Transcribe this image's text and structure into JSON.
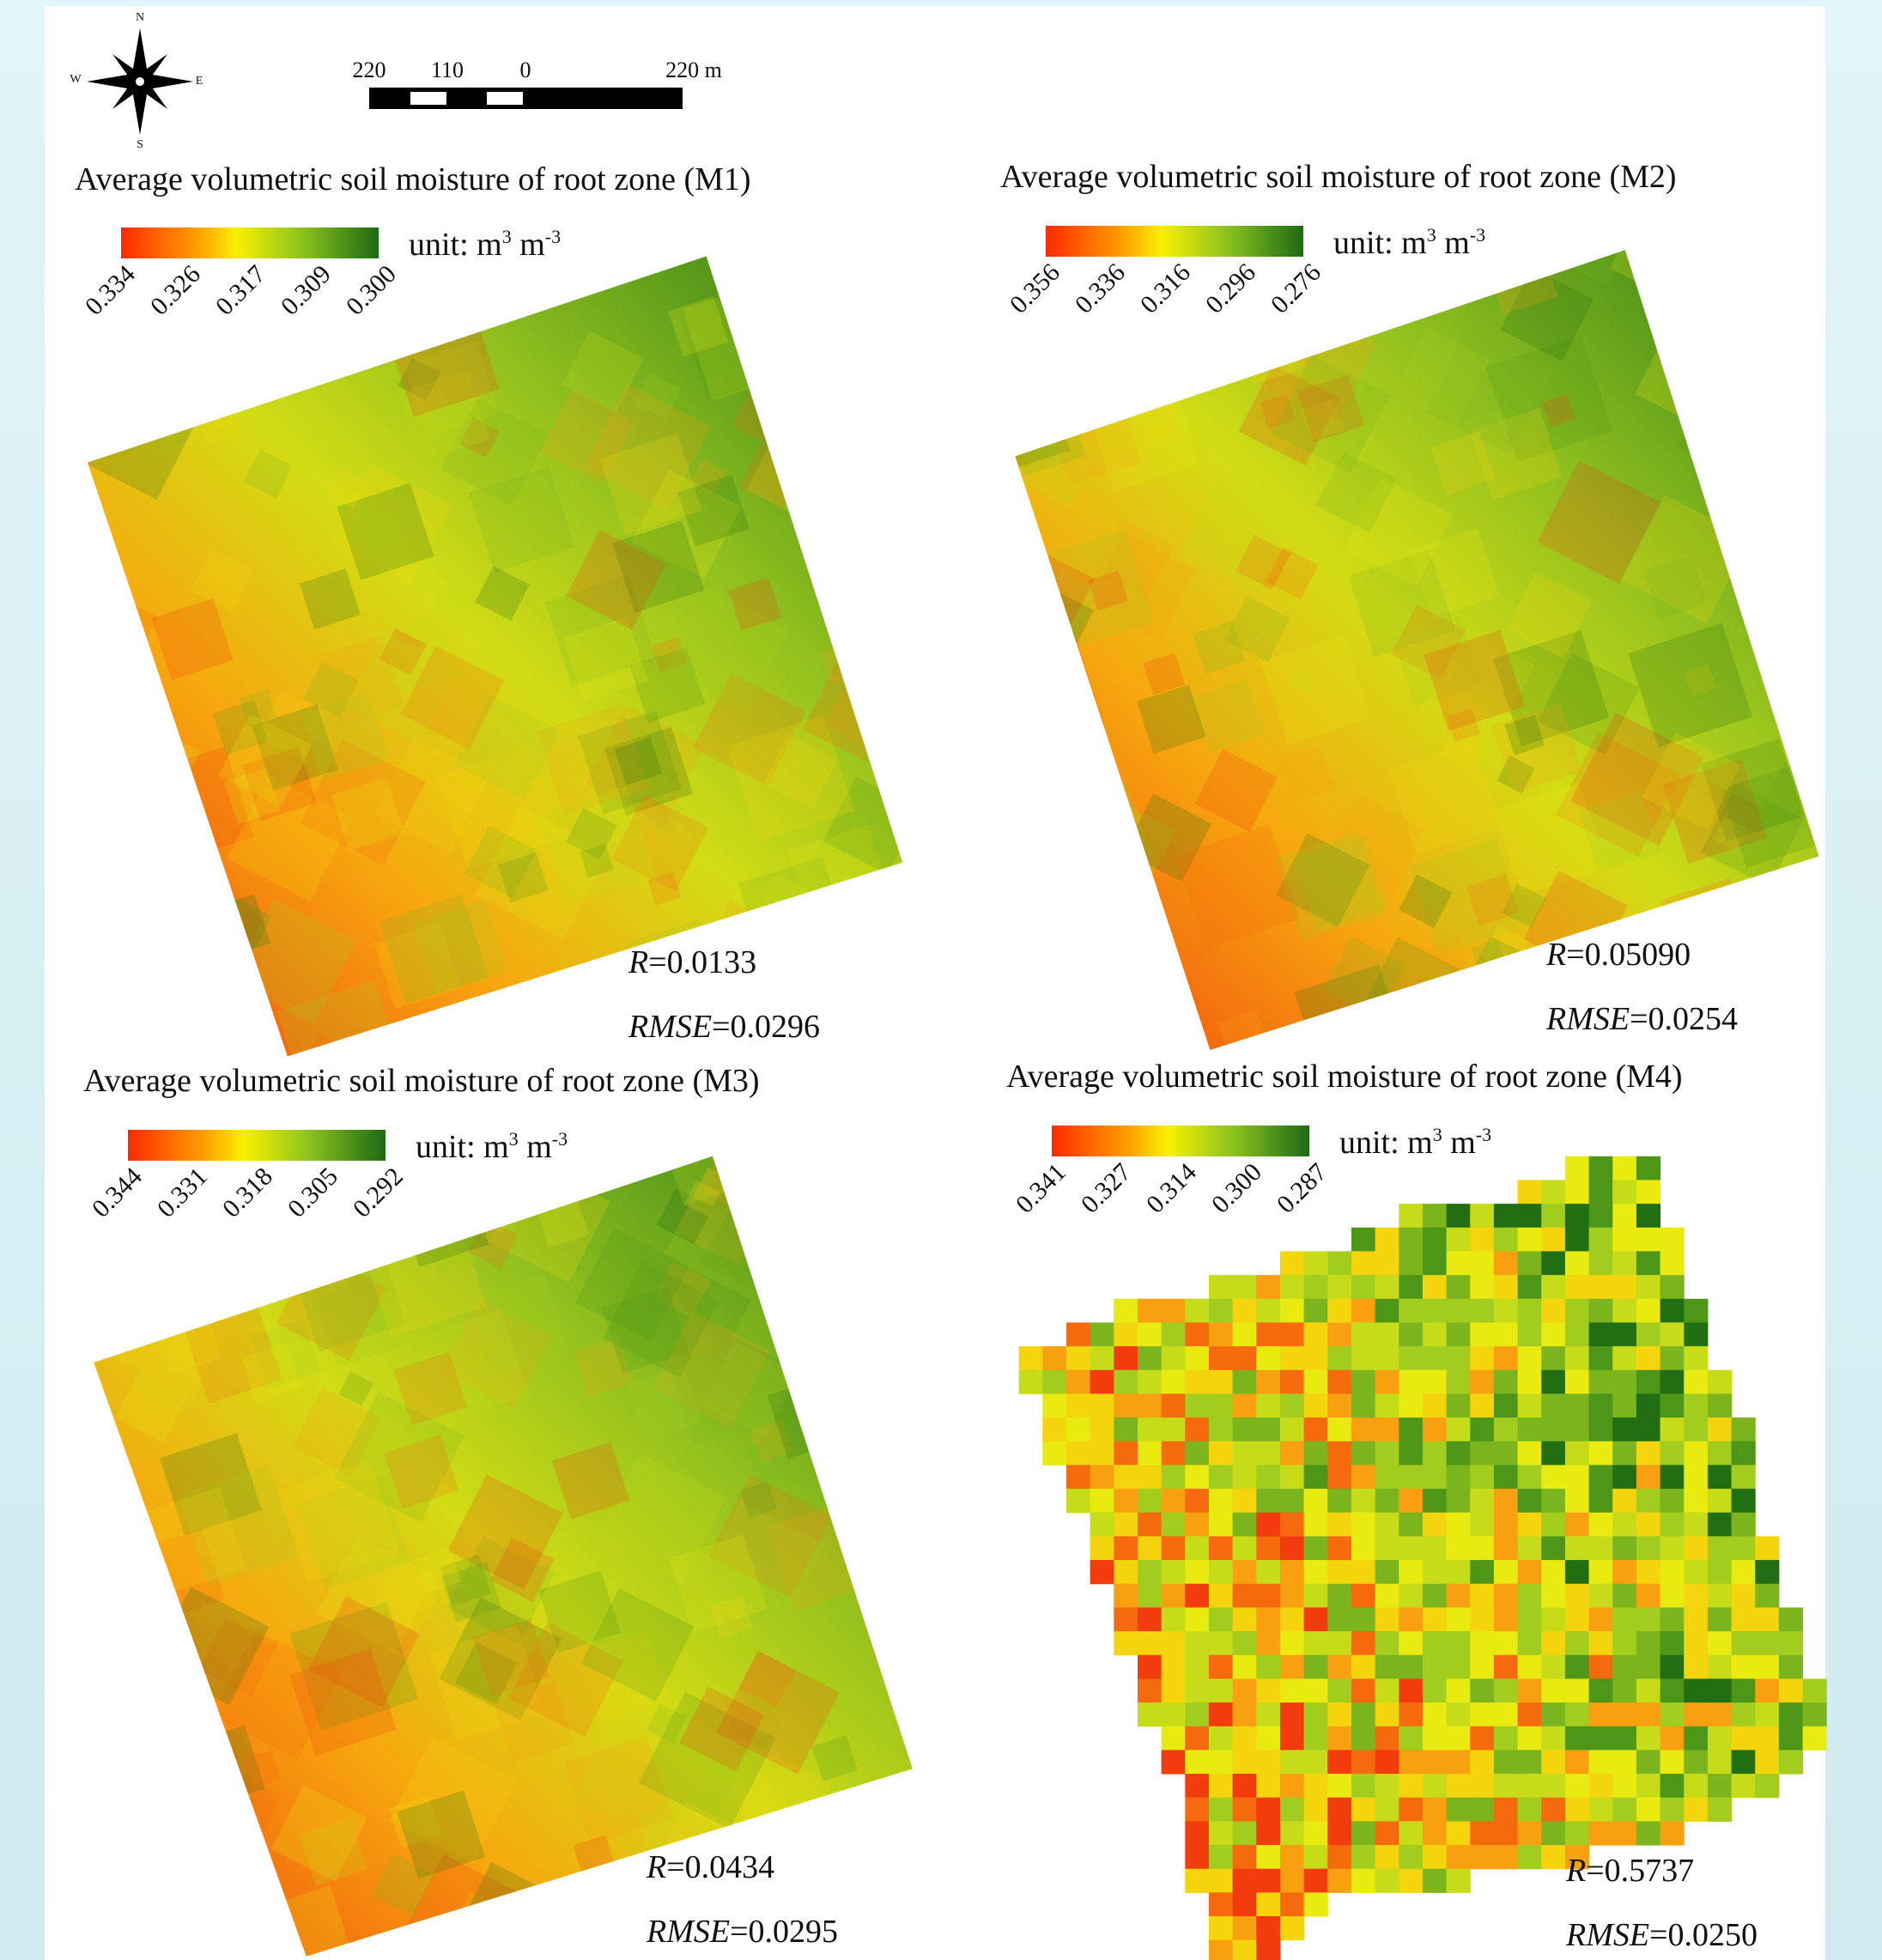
{
  "compass": {
    "n": "N",
    "s": "S",
    "e": "E",
    "w": "W"
  },
  "scale_bar": {
    "labels": [
      "220",
      "110",
      "0",
      "220 m"
    ]
  },
  "panels": [
    {
      "title": "Average volumetric soil moisture of root zone (M1)",
      "legend": {
        "ticks": [
          "0.334",
          "0.326",
          "0.317",
          "0.309",
          "0.300"
        ],
        "unit": {
          "text": "unit: m",
          "sup": "3",
          "text2": " m",
          "sup2": "-3"
        }
      },
      "stats": [
        {
          "name": "R",
          "text": "=0.0133"
        },
        {
          "name": "RMSE",
          "text": "=0.0296"
        }
      ]
    },
    {
      "title": "Average volumetric soil moisture of root zone (M2)",
      "legend": {
        "ticks": [
          "0.356",
          "0.336",
          "0.316",
          "0.296",
          "0.276"
        ],
        "unit": {
          "text": "unit: m",
          "sup": "3",
          "text2": " m",
          "sup2": "-3"
        }
      },
      "stats": [
        {
          "name": "R",
          "text": "=0.05090"
        },
        {
          "name": "RMSE",
          "text": "=0.0254"
        }
      ]
    },
    {
      "title": "Average volumetric soil moisture of root zone (M3)",
      "legend": {
        "ticks": [
          "0.344",
          "0.331",
          "0.318",
          "0.305",
          "0.292"
        ],
        "unit": {
          "text": "unit: m",
          "sup": "3",
          "text2": " m",
          "sup2": "-3"
        }
      },
      "stats": [
        {
          "name": "R",
          "text": "=0.0434"
        },
        {
          "name": "RMSE",
          "text": "=0.0295"
        }
      ]
    },
    {
      "title": "Average volumetric soil moisture of root zone (M4)",
      "legend": {
        "ticks": [
          "0.341",
          "0.327",
          "0.314",
          "0.300",
          "0.287"
        ],
        "unit": {
          "text": "unit: m",
          "sup": "3",
          "text2": " m",
          "sup2": "-3"
        }
      },
      "stats": [
        {
          "name": "R",
          "text": "=0.5737"
        },
        {
          "name": "RMSE",
          "text": "=0.0250"
        }
      ]
    }
  ]
}
